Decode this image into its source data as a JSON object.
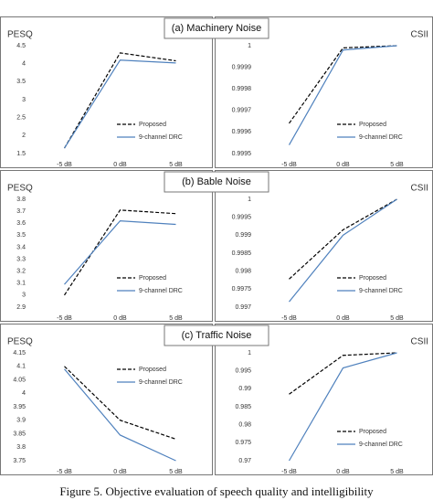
{
  "chart_data": [
    {
      "type": "line",
      "title": "(a) Machinery Noise",
      "y_label": "PESQ",
      "categories": [
        "-5 dB",
        "0 dB",
        "5 dB"
      ],
      "series": [
        {
          "name": "Proposed",
          "color": "#000000",
          "dash": true,
          "values": [
            1.65,
            4.3,
            4.08
          ]
        },
        {
          "name": "9-channel DRC",
          "color": "#4f81bd",
          "dash": false,
          "values": [
            1.65,
            4.1,
            4.02
          ]
        }
      ],
      "ylim": [
        1.5,
        4.5
      ],
      "yticks": [
        1.5,
        2,
        2.5,
        3,
        3.5,
        4,
        4.5
      ],
      "legend": "lower right"
    },
    {
      "type": "line",
      "y_label": "CSII",
      "categories": [
        "-5 dB",
        "0 dB",
        "5 dB"
      ],
      "series": [
        {
          "name": "Proposed",
          "color": "#000000",
          "dash": true,
          "values": [
            0.99964,
            0.99999,
            1
          ]
        },
        {
          "name": "9-channel DRC",
          "color": "#4f81bd",
          "dash": false,
          "values": [
            0.99954,
            0.99998,
            1
          ]
        }
      ],
      "ylim": [
        0.9995,
        1
      ],
      "yticks": [
        0.9995,
        0.9996,
        0.9997,
        0.9998,
        0.9999,
        1
      ],
      "legend": "lower right"
    },
    {
      "type": "line",
      "title": "(b) Bable Noise",
      "y_label": "PESQ",
      "categories": [
        "-5 dB",
        "0 dB",
        "5 dB"
      ],
      "series": [
        {
          "name": "Proposed",
          "color": "#000000",
          "dash": true,
          "values": [
            3.0,
            3.71,
            3.68
          ]
        },
        {
          "name": "9-channel DRC",
          "color": "#4f81bd",
          "dash": false,
          "values": [
            3.09,
            3.62,
            3.59
          ]
        }
      ],
      "ylim": [
        2.9,
        3.8
      ],
      "yticks": [
        2.9,
        3,
        3.1,
        3.2,
        3.3,
        3.4,
        3.5,
        3.6,
        3.7,
        3.8
      ],
      "legend": "lower right"
    },
    {
      "type": "line",
      "y_label": "CSII",
      "categories": [
        "-5 dB",
        "0 dB",
        "5 dB"
      ],
      "series": [
        {
          "name": "Proposed",
          "color": "#000000",
          "dash": true,
          "values": [
            0.99778,
            0.99915,
            1
          ]
        },
        {
          "name": "9-channel DRC",
          "color": "#4f81bd",
          "dash": false,
          "values": [
            0.99715,
            0.999,
            1
          ]
        }
      ],
      "ylim": [
        0.997,
        1
      ],
      "yticks": [
        0.997,
        0.9975,
        0.998,
        0.9985,
        0.999,
        0.9995,
        1
      ],
      "legend": "lower right"
    },
    {
      "type": "line",
      "title": "(c) Traffic Noise",
      "y_label": "PESQ",
      "categories": [
        "-5 dB",
        "0 dB",
        "5 dB"
      ],
      "series": [
        {
          "name": "Proposed",
          "color": "#000000",
          "dash": true,
          "values": [
            4.1,
            3.9,
            3.83
          ]
        },
        {
          "name": "9-channel DRC",
          "color": "#4f81bd",
          "dash": false,
          "values": [
            4.09,
            3.845,
            3.75
          ]
        }
      ],
      "ylim": [
        3.75,
        4.15
      ],
      "yticks": [
        3.75,
        3.8,
        3.85,
        3.9,
        3.95,
        4,
        4.05,
        4.1,
        4.15
      ],
      "legend": "upper right"
    },
    {
      "type": "line",
      "y_label": "CSII",
      "categories": [
        "-5 dB",
        "0 dB",
        "5 dB"
      ],
      "series": [
        {
          "name": "Proposed",
          "color": "#000000",
          "dash": true,
          "values": [
            0.9885,
            0.9993,
            1
          ]
        },
        {
          "name": "9-channel DRC",
          "color": "#4f81bd",
          "dash": false,
          "values": [
            0.97,
            0.9958,
            1
          ]
        }
      ],
      "ylim": [
        0.97,
        1
      ],
      "yticks": [
        0.97,
        0.975,
        0.98,
        0.985,
        0.99,
        0.995,
        1
      ],
      "legend": "lower right"
    }
  ],
  "caption": "Figure 5. Objective evaluation of speech quality and intelligibility"
}
